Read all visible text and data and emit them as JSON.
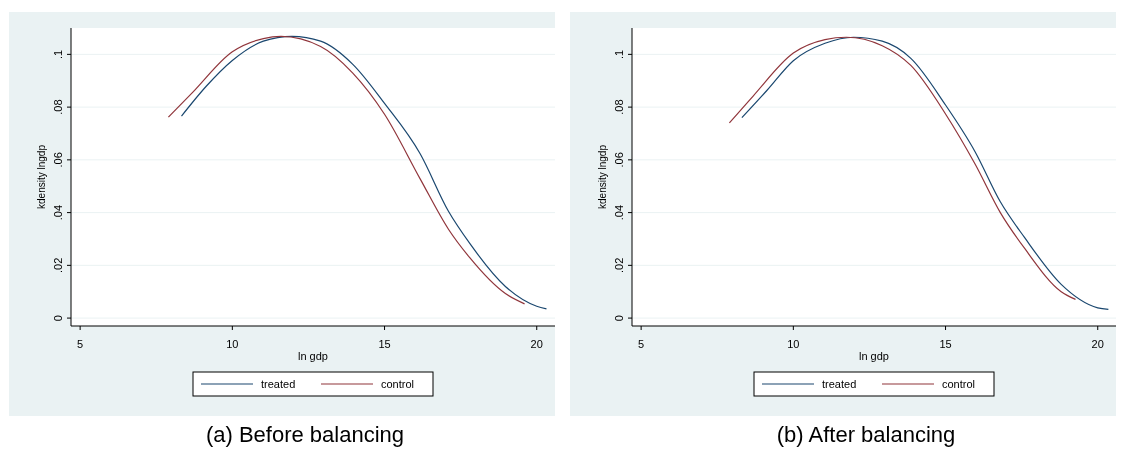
{
  "chart_data": [
    {
      "type": "line",
      "title": "(a) Before balancing",
      "xlabel": "ln gdp",
      "ylabel": "kdensity lngdp",
      "xlim": [
        4.7,
        20.6
      ],
      "ylim": [
        -0.003,
        0.11
      ],
      "xticks": [
        5,
        10,
        15,
        20
      ],
      "yticks": [
        {
          "value": 0,
          "label": "0"
        },
        {
          "value": 0.02,
          "label": ".02"
        },
        {
          "value": 0.04,
          "label": ".04"
        },
        {
          "value": 0.06,
          "label": ".06"
        },
        {
          "value": 0.08,
          "label": ".08"
        },
        {
          "value": 0.1,
          "label": ".1"
        }
      ],
      "grid": "y",
      "legend": "bottom",
      "series": [
        {
          "name": "treated",
          "color": "#1a476f",
          "x": [
            8.33,
            9.15,
            10,
            11.02,
            11.96,
            12.9,
            13.95,
            15,
            16.17,
            17.1,
            17.8,
            18.97,
            20,
            20.32
          ],
          "values": [
            0.0766,
            0.088,
            0.0977,
            0.105,
            0.1068,
            0.105,
            0.0963,
            0.0814,
            0.0623,
            0.0405,
            0.0283,
            0.012,
            0.0045,
            0.0035
          ]
        },
        {
          "name": "control",
          "color": "#90353b",
          "x": [
            7.9,
            8.68,
            10,
            11.02,
            11.6,
            12.9,
            13.95,
            15,
            16.17,
            17.1,
            17.8,
            18.97,
            19.6
          ],
          "values": [
            0.0762,
            0.0854,
            0.101,
            0.106,
            0.1068,
            0.103,
            0.093,
            0.0773,
            0.0528,
            0.0337,
            0.0229,
            0.0093,
            0.0054
          ]
        }
      ]
    },
    {
      "type": "line",
      "title": "(b) After balancing",
      "xlabel": "ln gdp",
      "ylabel": "kdensity lngdp",
      "xlim": [
        4.7,
        20.6
      ],
      "ylim": [
        -0.003,
        0.11
      ],
      "xticks": [
        5,
        10,
        15,
        20
      ],
      "yticks": [
        {
          "value": 0,
          "label": "0"
        },
        {
          "value": 0.02,
          "label": ".02"
        },
        {
          "value": 0.04,
          "label": ".04"
        },
        {
          "value": 0.06,
          "label": ".06"
        },
        {
          "value": 0.08,
          "label": ".08"
        },
        {
          "value": 0.1,
          "label": ".1"
        }
      ],
      "grid": "y",
      "legend": "bottom",
      "series": [
        {
          "name": "treated",
          "color": "#1a476f",
          "x": [
            8.31,
            9.13,
            10,
            11.04,
            11.98,
            12.92,
            13.86,
            15,
            15.97,
            16.8,
            17.6,
            18.8,
            20,
            20.35
          ],
          "values": [
            0.076,
            0.0863,
            0.0976,
            0.1042,
            0.1065,
            0.105,
            0.0985,
            0.0808,
            0.0631,
            0.0441,
            0.0305,
            0.0128,
            0.0039,
            0.0033
          ]
        },
        {
          "name": "control",
          "color": "#90353b",
          "x": [
            7.9,
            8.68,
            10,
            11.04,
            11.74,
            12.92,
            13.86,
            15,
            15.97,
            16.8,
            17.6,
            18.8,
            19.27
          ],
          "values": [
            0.074,
            0.0842,
            0.1005,
            0.1056,
            0.1065,
            0.1033,
            0.0958,
            0.0774,
            0.0584,
            0.04,
            0.0264,
            0.01,
            0.0071
          ]
        }
      ]
    }
  ]
}
